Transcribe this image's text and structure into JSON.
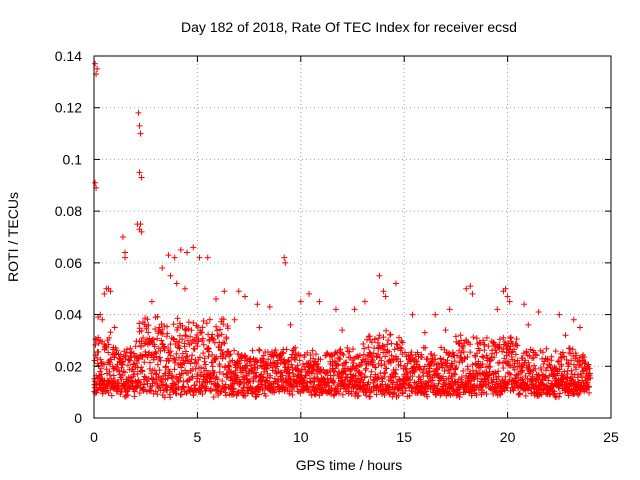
{
  "chart_data": {
    "type": "scatter",
    "title": "Day 182 of 2018, Rate Of TEC Index for receiver ecsd",
    "xlabel": "GPS time / hours",
    "ylabel": "ROTI / TECUs",
    "xlim": [
      0,
      25
    ],
    "ylim": [
      0,
      0.14
    ],
    "xticks": [
      "0",
      "5",
      "10",
      "15",
      "20",
      "25"
    ],
    "yticks": [
      "0",
      "0.02",
      "0.04",
      "0.06",
      "0.08",
      "0.1",
      "0.12",
      "0.14"
    ],
    "grid": true,
    "marker": "+",
    "series": [
      {
        "name": "ROTI",
        "color": "#ff0000",
        "x": [
          0.05,
          0.1,
          0.15,
          0.05,
          0.1,
          0.2,
          0.3,
          0.4,
          0.5,
          0.6,
          0.7,
          0.8,
          2.15,
          2.2,
          2.25,
          2.2,
          2.3,
          2.1,
          2.2,
          2.25,
          2.3,
          1.4,
          1.5,
          1.5,
          3.3,
          3.6,
          3.9,
          4.2,
          4.5,
          4.8,
          5.1,
          5.5,
          3.7,
          4.0,
          4.4,
          5.9,
          6.3,
          7.0,
          7.3,
          7.9,
          8.5,
          9.2,
          9.25,
          10.0,
          10.4,
          10.9,
          11.7,
          12.6,
          13.1,
          13.8,
          14.0,
          14.1,
          14.6,
          15.4,
          16.5,
          17.2,
          18.0,
          18.2,
          18.3,
          19.5,
          19.8,
          19.9,
          20.0,
          20.1,
          20.8,
          21.5,
          22.5,
          23.2,
          23.5,
          0.3,
          1.0,
          2.8,
          6.8,
          8.0,
          9.5,
          12.0,
          16.0,
          17.0,
          21.0,
          22.8
        ],
        "y": [
          0.137,
          0.133,
          0.135,
          0.091,
          0.089,
          0.039,
          0.04,
          0.038,
          0.048,
          0.05,
          0.05,
          0.049,
          0.118,
          0.113,
          0.11,
          0.095,
          0.093,
          0.075,
          0.073,
          0.075,
          0.072,
          0.07,
          0.064,
          0.062,
          0.058,
          0.063,
          0.062,
          0.065,
          0.064,
          0.066,
          0.062,
          0.062,
          0.055,
          0.052,
          0.05,
          0.046,
          0.049,
          0.049,
          0.047,
          0.044,
          0.043,
          0.062,
          0.06,
          0.045,
          0.048,
          0.045,
          0.042,
          0.042,
          0.045,
          0.055,
          0.049,
          0.047,
          0.052,
          0.04,
          0.04,
          0.042,
          0.05,
          0.051,
          0.048,
          0.042,
          0.049,
          0.05,
          0.047,
          0.045,
          0.044,
          0.041,
          0.04,
          0.038,
          0.035,
          0.03,
          0.035,
          0.045,
          0.038,
          0.035,
          0.036,
          0.034,
          0.033,
          0.034,
          0.036,
          0.032
        ]
      }
    ],
    "dense_band": {
      "x_range": [
        0,
        24
      ],
      "y_floor": 0.004,
      "y_typical_max": 0.03,
      "note": "dense band of ROTI samples, mostly 0.005-0.025 TECUs, with higher spread between 2-6 hours"
    }
  }
}
